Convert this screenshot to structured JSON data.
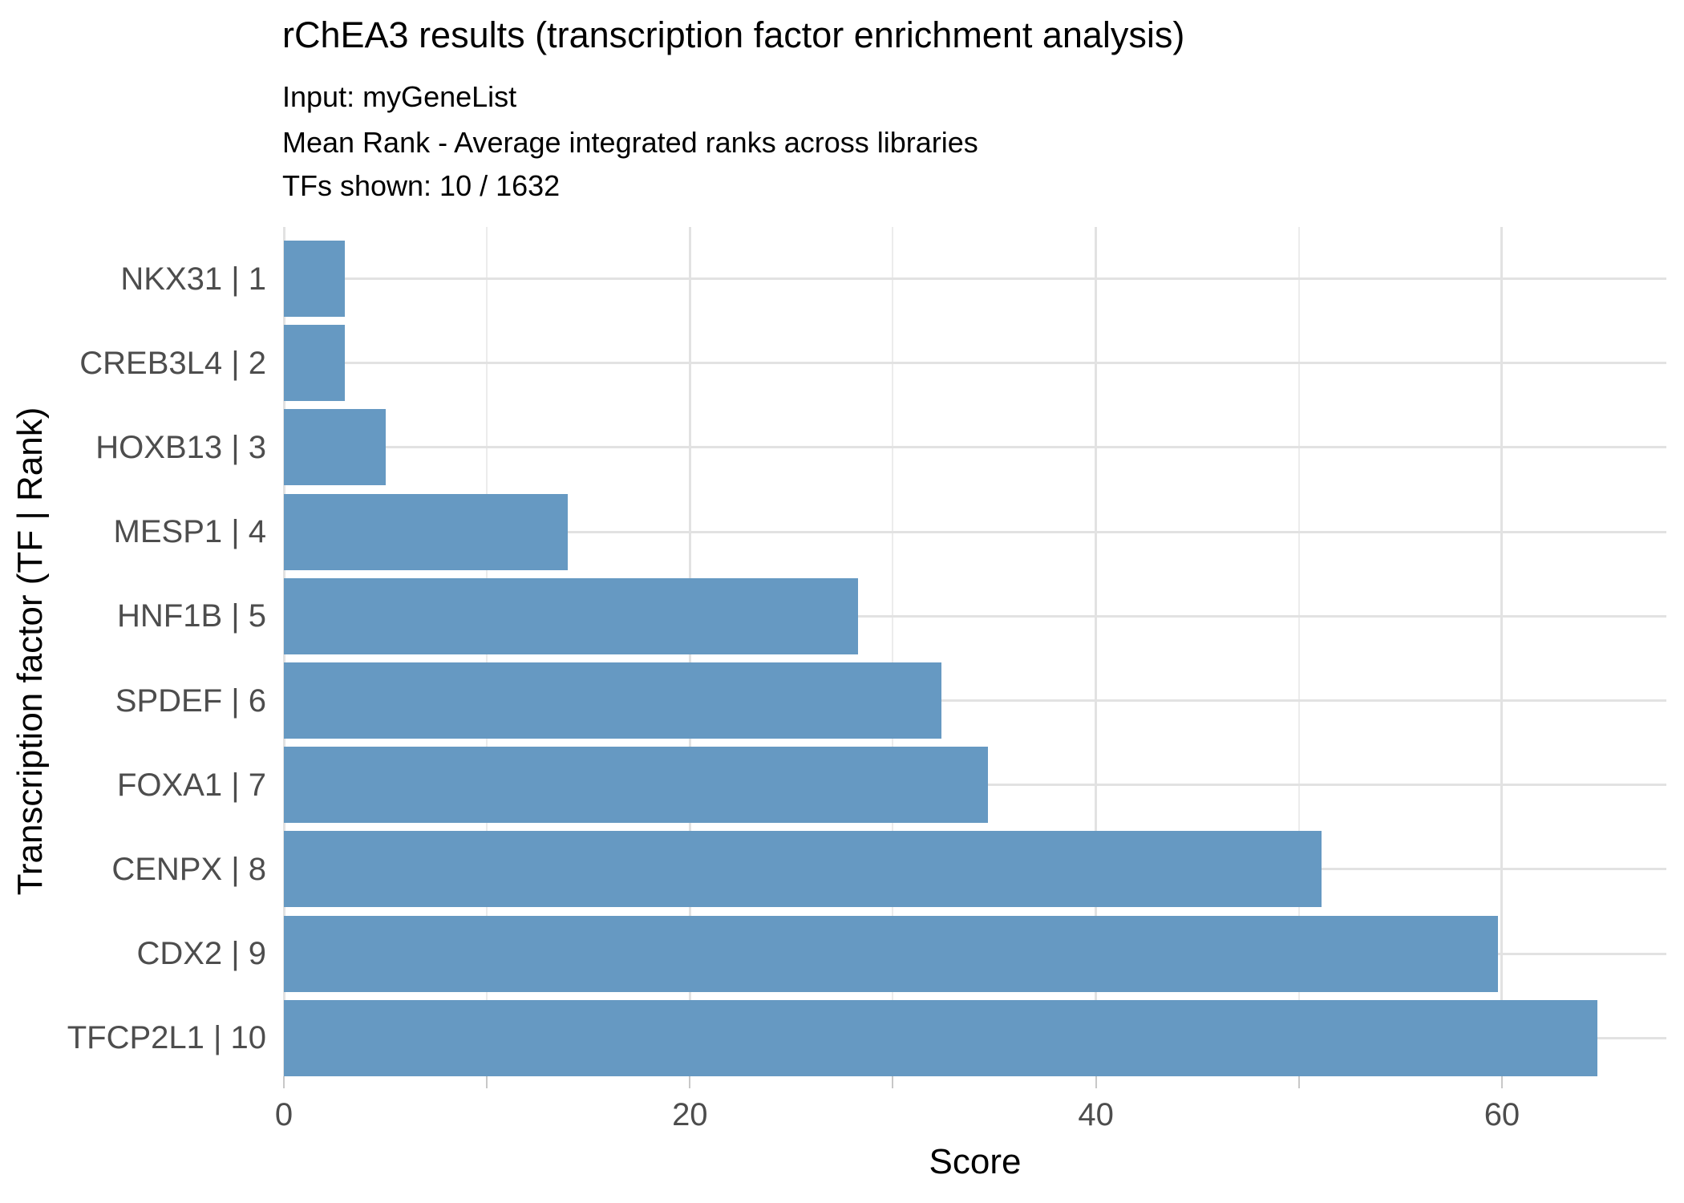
{
  "chart_data": {
    "type": "bar",
    "orientation": "horizontal",
    "title": "rChEA3 results (transcription factor enrichment analysis)",
    "subtitle_lines": [
      "Input: myGeneList",
      "Mean Rank - Average integrated ranks across libraries",
      "TFs shown: 10 / 1632"
    ],
    "categories": [
      "NKX31 | 1",
      "CREB3L4 | 2",
      "HOXB13 | 3",
      "MESP1 | 4",
      "HNF1B | 5",
      "SPDEF | 6",
      "FOXA1 | 7",
      "CENPX | 8",
      "CDX2 | 9",
      "TFCP2L1 | 10"
    ],
    "values": [
      3.0,
      3.0,
      5.0,
      14.0,
      28.3,
      32.4,
      34.7,
      51.1,
      59.8,
      64.7
    ],
    "xlabel": "Score",
    "ylabel": "Transcription factor (TF | Rank)",
    "xlim": [
      0,
      68.1
    ],
    "x_major_ticks": [
      0,
      20,
      40,
      60
    ],
    "x_tick_labels": [
      "0",
      "20",
      "40",
      "60"
    ],
    "x_minor_ticks": [
      10,
      30,
      50
    ],
    "tick_marks": [
      0,
      10,
      20,
      30,
      40,
      50,
      60
    ],
    "grid": "major and minor vertical gridlines, major horizontal gridline per category",
    "legend": "none"
  },
  "colors": {
    "bar": "#6699C2",
    "title_text": "#000000",
    "axis_text": "#4D4D4D",
    "grid_major": "#E2E2E2",
    "grid_minor": "#ECECEC",
    "tick_mark": "#C8C8C8",
    "background": "#FFFFFF"
  }
}
